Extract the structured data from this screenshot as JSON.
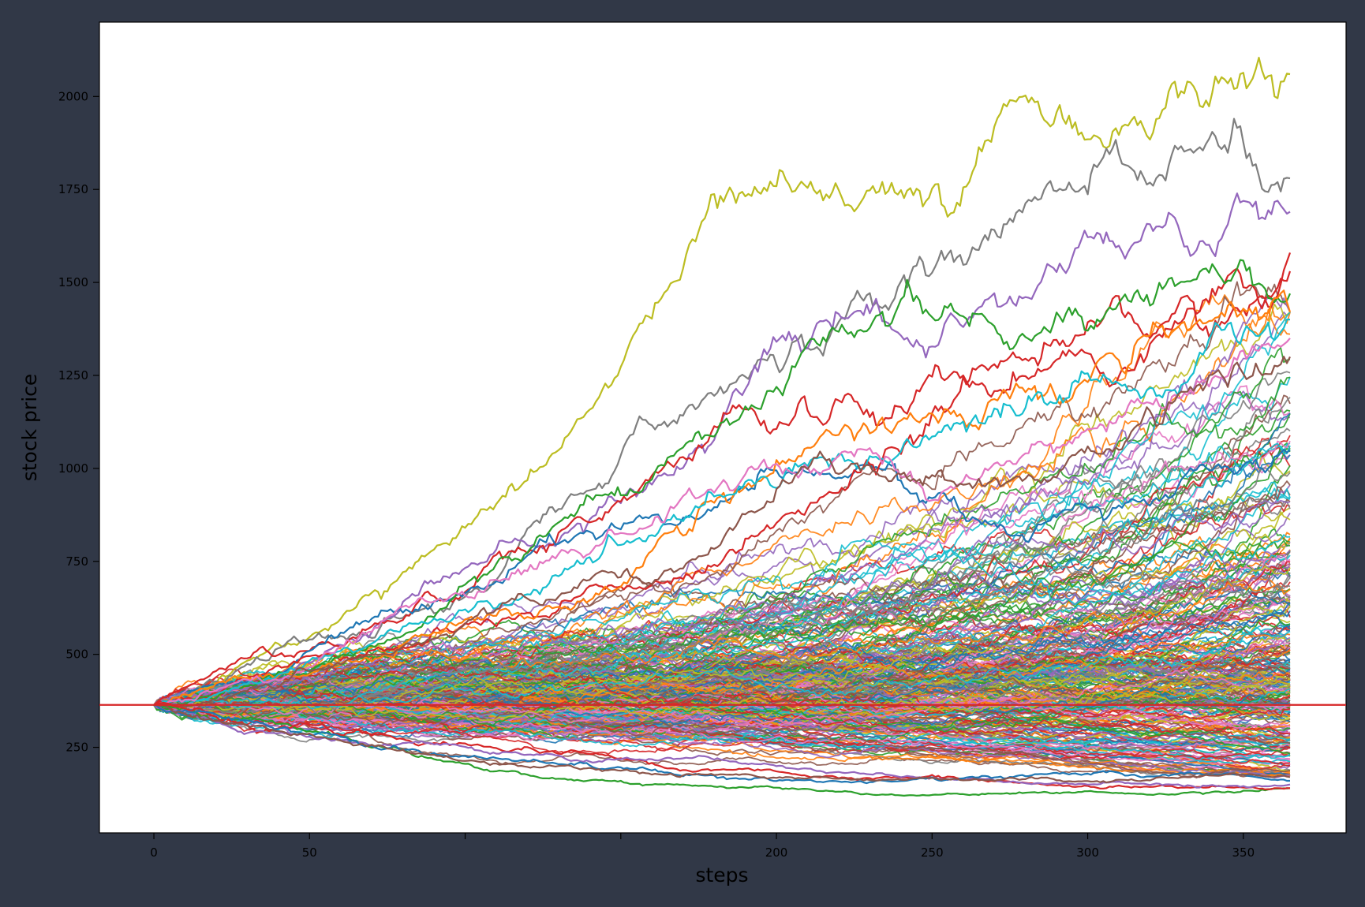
{
  "chart_data": {
    "type": "line",
    "title": "",
    "xlabel": "steps",
    "ylabel": "stock price",
    "xlim": [
      -17.5,
      383
    ],
    "ylim": [
      20,
      2200
    ],
    "x_ticks": [
      0,
      50,
      100,
      150,
      200,
      250,
      300,
      350
    ],
    "x_tick_labels": [
      "0",
      "50",
      "",
      "",
      "200",
      "250",
      "300",
      "350"
    ],
    "y_ticks": [
      250,
      500,
      750,
      1000,
      1250,
      1500,
      1750,
      2000
    ],
    "y_tick_labels": [
      "250",
      "500",
      "750",
      "1000",
      "1250",
      "1500",
      "1750",
      "2000"
    ],
    "grid": false,
    "legend": "none",
    "n_steps": 365,
    "start_price": 364,
    "reference_line": {
      "y": 364,
      "color": "#d62728"
    },
    "colors": [
      "#1f77b4",
      "#ff7f0e",
      "#2ca02c",
      "#d62728",
      "#9467bd",
      "#8c564b",
      "#e377c2",
      "#7f7f7f",
      "#bcbd22",
      "#17becf"
    ],
    "series": [
      {
        "color": "#bcbd22",
        "final": 2060,
        "mid": 1520,
        "q": 0.5
      },
      {
        "color": "#7f7f7f",
        "final": 1780,
        "mid": 1310,
        "q": 0.5
      },
      {
        "color": "#9467bd",
        "final": 1690,
        "mid": 1230,
        "q": 0.5
      },
      {
        "color": "#d62728",
        "final": 1580,
        "mid": 1180,
        "q": 0.5
      },
      {
        "color": "#1f77b4",
        "final": 1050,
        "mid": 1180,
        "q": 0.54
      },
      {
        "color": "#d62728",
        "final": 1530,
        "mid": 1300,
        "q": 0.74
      },
      {
        "color": "#2ca02c",
        "final": 1470,
        "mid": 1130,
        "q": 0.58
      },
      {
        "color": "#ff7f0e",
        "final": 1420,
        "mid": 1080,
        "q": 0.58
      },
      {
        "color": "#17becf",
        "final": 1400,
        "mid": 1050,
        "q": 0.58
      },
      {
        "color": "#e377c2",
        "final": 1350,
        "mid": 980,
        "q": 0.58
      },
      {
        "color": "#8c564b",
        "final": 1300,
        "mid": 960,
        "q": 0.58
      },
      {
        "color": "#2ca02c",
        "final": 140,
        "mid": 135,
        "q": 0.65
      },
      {
        "color": "#d62728",
        "final": 140,
        "mid": 160,
        "q": 0.85
      },
      {
        "color": "#9467bd",
        "final": 150,
        "mid": 150,
        "q": 0.6
      },
      {
        "color": "#1f77b4",
        "final": 160,
        "mid": 170,
        "q": 0.6
      },
      {
        "color": "#8c564b",
        "final": 170,
        "mid": 185,
        "q": 0.6
      }
    ]
  }
}
